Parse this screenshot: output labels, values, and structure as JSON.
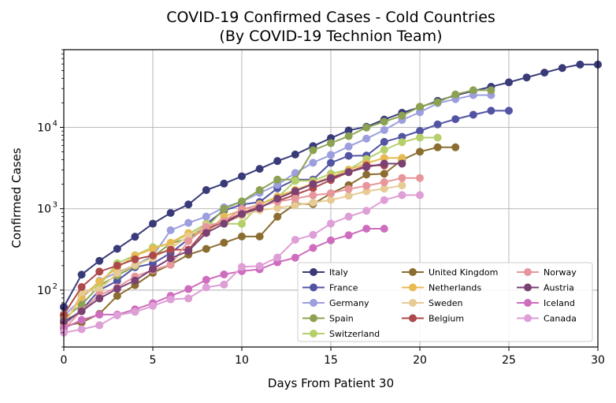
{
  "chart_data": {
    "type": "line",
    "title": "COVID-19 Confirmed Cases - Cold Countries",
    "subtitle": "(By COVID-19 Technion Team)",
    "xlabel": "Days From Patient 30",
    "ylabel": "Confirmed Cases",
    "xlim": [
      0,
      30
    ],
    "ylim": [
      20,
      90000
    ],
    "yscale": "log",
    "grid": true,
    "legend_position": "lower-right",
    "x_ticks": [
      "0",
      "5",
      "10",
      "15",
      "20",
      "25",
      "30"
    ],
    "y_ticks": [
      {
        "value": 100,
        "base": "10",
        "exp": "2"
      },
      {
        "value": 1000,
        "base": "10",
        "exp": "3"
      },
      {
        "value": 10000,
        "base": "10",
        "exp": "4"
      }
    ],
    "series": [
      {
        "name": "Italy",
        "color": "#393b79",
        "values": [
          62,
          155,
          229,
          322,
          453,
          655,
          888,
          1128,
          1694,
          2036,
          2502,
          3089,
          3858,
          4636,
          5883,
          7375,
          9172,
          10149,
          12462,
          15113,
          17660,
          21157,
          24747,
          27980,
          31506,
          35713,
          41035,
          47021,
          53578,
          59138,
          59138
        ]
      },
      {
        "name": "France",
        "color": "#5254a3",
        "values": [
          38,
          57,
          100,
          130,
          191,
          212,
          285,
          423,
          653,
          949,
          1126,
          1209,
          1784,
          2281,
          2281,
          3661,
          4469,
          4499,
          6633,
          7652,
          9043,
          10871,
          12612,
          14282,
          16018,
          16018
        ]
      },
      {
        "name": "Germany",
        "color": "#9c9ede",
        "values": [
          48,
          79,
          130,
          165,
          203,
          262,
          545,
          670,
          800,
          1040,
          1224,
          1565,
          1966,
          2745,
          3675,
          4585,
          5813,
          7272,
          9257,
          12327,
          15320,
          19848,
          22213,
          24873,
          24873
        ]
      },
      {
        "name": "Spain",
        "color": "#8ca252",
        "values": [
          45,
          66,
          114,
          151,
          198,
          257,
          374,
          430,
          589,
          999,
          1231,
          1695,
          2277,
          2277,
          5232,
          6391,
          7798,
          9942,
          11748,
          13910,
          17963,
          20410,
          25374,
          28603,
          28603
        ]
      },
      {
        "name": "Switzerland",
        "color": "#b5cf6b",
        "values": [
          37,
          90,
          114,
          214,
          268,
          337,
          374,
          491,
          652,
          652,
          652,
          1139,
          1359,
          2200,
          2200,
          2700,
          3028,
          4075,
          5294,
          6575,
          7474,
          7474
        ]
      },
      {
        "name": "United Kingdom",
        "color": "#8c6d31",
        "values": [
          36,
          40,
          51,
          85,
          115,
          163,
          206,
          273,
          321,
          382,
          456,
          456,
          798,
          1140,
          1140,
          1543,
          1950,
          2626,
          2689,
          3983,
          5018,
          5683,
          5683
        ]
      },
      {
        "name": "Netherlands",
        "color": "#e7ba52",
        "values": [
          38,
          82,
          128,
          188,
          265,
          321,
          382,
          503,
          503,
          804,
          959,
          1135,
          1413,
          1705,
          2051,
          2460,
          2994,
          3631,
          4204,
          4204
        ]
      },
      {
        "name": "Sweden",
        "color": "#e7cb94",
        "values": [
          35,
          94,
          101,
          161,
          203,
          248,
          326,
          461,
          620,
          687,
          814,
          961,
          1022,
          1103,
          1190,
          1279,
          1439,
          1639,
          1763,
          1934
        ]
      },
      {
        "name": "Belgium",
        "color": "#ad494a",
        "values": [
          50,
          109,
          169,
          200,
          239,
          267,
          314,
          314,
          559,
          689,
          886,
          1058,
          1243,
          1486,
          1795,
          2257,
          2815,
          3401,
          3401
        ]
      },
      {
        "name": "Norway",
        "color": "#e7969c",
        "values": [
          33,
          56,
          87,
          108,
          147,
          176,
          205,
          400,
          598,
          702,
          996,
          1090,
          1221,
          1333,
          1463,
          1550,
          1746,
          1914,
          2118,
          2385,
          2385
        ]
      },
      {
        "name": "Austria",
        "color": "#7b4173",
        "values": [
          41,
          55,
          79,
          104,
          131,
          182,
          246,
          302,
          504,
          655,
          860,
          1016,
          1332,
          1646,
          2013,
          2388,
          2814,
          3244,
          3582,
          3582
        ]
      },
      {
        "name": "Iceland",
        "color": "#ce6dbd",
        "values": [
          34,
          43,
          50,
          50,
          58,
          69,
          85,
          103,
          134,
          156,
          171,
          180,
          220,
          250,
          330,
          409,
          473,
          568,
          568
        ]
      },
      {
        "name": "Canada",
        "color": "#de9ed6",
        "values": [
          30,
          33,
          37,
          49,
          54,
          64,
          77,
          79,
          108,
          117,
          193,
          198,
          252,
          415,
          478,
          657,
          800,
          943,
          1277,
          1469,
          1469
        ]
      }
    ]
  }
}
